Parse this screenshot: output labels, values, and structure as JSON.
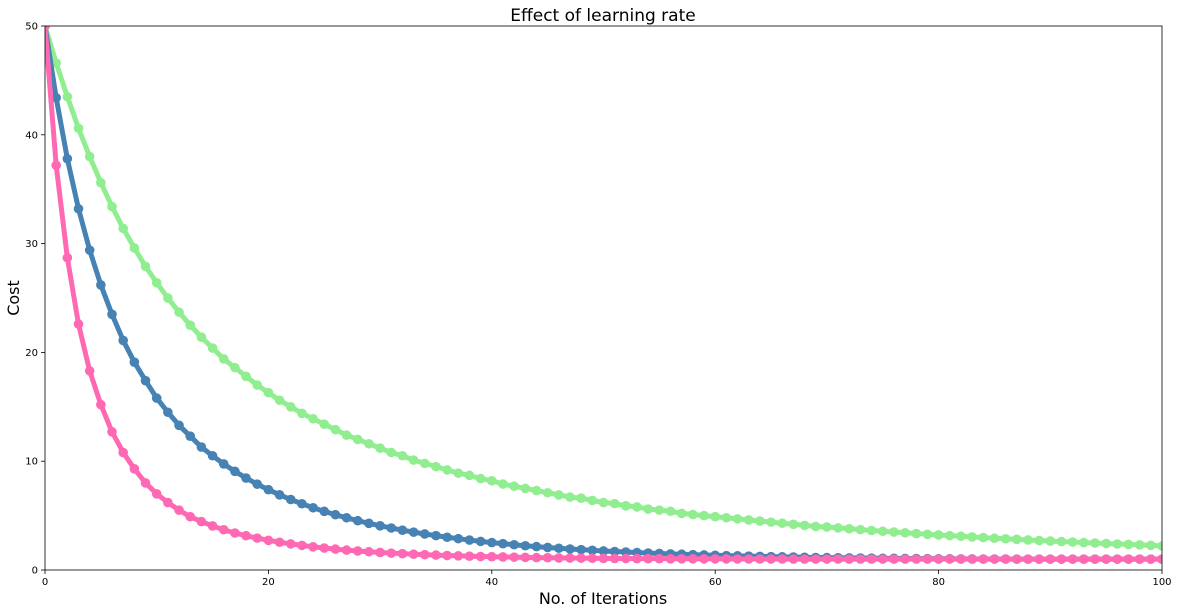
{
  "chart_data": {
    "type": "line",
    "title": "Effect of learning rate",
    "xlabel": "No. of Iterations",
    "ylabel": "Cost",
    "xlim": [
      0,
      100
    ],
    "ylim": [
      0,
      50
    ],
    "xticks": [
      0,
      20,
      40,
      60,
      80,
      100
    ],
    "yticks": [
      0,
      10,
      20,
      30,
      40,
      50
    ],
    "grid": false,
    "x": [
      0,
      1,
      2,
      3,
      4,
      5,
      6,
      7,
      8,
      9,
      10,
      11,
      12,
      13,
      14,
      15,
      16,
      17,
      18,
      19,
      20,
      21,
      22,
      23,
      24,
      25,
      26,
      27,
      28,
      29,
      30,
      31,
      32,
      33,
      34,
      35,
      36,
      37,
      38,
      39,
      40,
      41,
      42,
      43,
      44,
      45,
      46,
      47,
      48,
      49,
      50,
      51,
      52,
      53,
      54,
      55,
      56,
      57,
      58,
      59,
      60,
      61,
      62,
      63,
      64,
      65,
      66,
      67,
      68,
      69,
      70,
      71,
      72,
      73,
      74,
      75,
      76,
      77,
      78,
      79,
      80,
      81,
      82,
      83,
      84,
      85,
      86,
      87,
      88,
      89,
      90,
      91,
      92,
      93,
      94,
      95,
      96,
      97,
      98,
      99,
      100
    ],
    "series": [
      {
        "color": "#90ee90",
        "values": [
          50.0,
          46.6,
          43.5,
          40.6,
          38.0,
          35.6,
          33.4,
          31.4,
          29.6,
          27.9,
          26.4,
          25.0,
          23.7,
          22.5,
          21.4,
          20.4,
          19.4,
          18.6,
          17.8,
          17.0,
          16.3,
          15.6,
          15.0,
          14.4,
          13.9,
          13.4,
          12.9,
          12.4,
          12.0,
          11.6,
          11.2,
          10.8,
          10.5,
          10.1,
          9.8,
          9.5,
          9.2,
          8.9,
          8.7,
          8.4,
          8.2,
          7.9,
          7.7,
          7.5,
          7.3,
          7.1,
          6.9,
          6.7,
          6.6,
          6.4,
          6.2,
          6.1,
          5.9,
          5.8,
          5.6,
          5.5,
          5.4,
          5.2,
          5.1,
          5.0,
          4.9,
          4.8,
          4.7,
          4.6,
          4.5,
          4.4,
          4.3,
          4.2,
          4.1,
          4.0,
          3.95,
          3.87,
          3.79,
          3.71,
          3.63,
          3.56,
          3.49,
          3.42,
          3.35,
          3.28,
          3.22,
          3.16,
          3.1,
          3.04,
          2.98,
          2.92,
          2.87,
          2.82,
          2.76,
          2.71,
          2.66,
          2.61,
          2.57,
          2.52,
          2.48,
          2.43,
          2.39,
          2.35,
          2.31,
          2.27,
          2.2
        ]
      },
      {
        "color": "#4682b4",
        "values": [
          50.0,
          43.4,
          37.8,
          33.2,
          29.4,
          26.2,
          23.5,
          21.1,
          19.1,
          17.4,
          15.8,
          14.5,
          13.3,
          12.3,
          11.3,
          10.5,
          9.75,
          9.07,
          8.45,
          7.89,
          7.38,
          6.91,
          6.48,
          6.09,
          5.72,
          5.39,
          5.08,
          4.8,
          4.53,
          4.29,
          4.06,
          3.86,
          3.66,
          3.48,
          3.31,
          3.16,
          3.01,
          2.88,
          2.75,
          2.63,
          2.52,
          2.42,
          2.32,
          2.23,
          2.15,
          2.07,
          2.0,
          1.93,
          1.87,
          1.81,
          1.75,
          1.7,
          1.65,
          1.6,
          1.56,
          1.52,
          1.48,
          1.45,
          1.41,
          1.38,
          1.35,
          1.32,
          1.3,
          1.27,
          1.25,
          1.23,
          1.21,
          1.19,
          1.17,
          1.15,
          1.14,
          1.12,
          1.11,
          1.1,
          1.09,
          1.08,
          1.07,
          1.06,
          1.05,
          1.04,
          1.03,
          1.03,
          1.02,
          1.02,
          1.01,
          1.01,
          1.01,
          1.0,
          1.0,
          1.0,
          1.0,
          1.0,
          1.0,
          1.0,
          1.0,
          1.0,
          1.0,
          1.0,
          1.0,
          1.0,
          1.0
        ]
      },
      {
        "color": "#ff69b4",
        "values": [
          50.0,
          37.2,
          28.7,
          22.6,
          18.3,
          15.2,
          12.7,
          10.8,
          9.3,
          8.0,
          7.0,
          6.2,
          5.5,
          4.9,
          4.45,
          4.05,
          3.7,
          3.4,
          3.15,
          2.93,
          2.73,
          2.55,
          2.4,
          2.26,
          2.13,
          2.02,
          1.92,
          1.83,
          1.75,
          1.68,
          1.61,
          1.55,
          1.5,
          1.45,
          1.41,
          1.37,
          1.33,
          1.3,
          1.27,
          1.24,
          1.22,
          1.2,
          1.18,
          1.16,
          1.14,
          1.13,
          1.11,
          1.1,
          1.09,
          1.08,
          1.07,
          1.06,
          1.06,
          1.05,
          1.04,
          1.04,
          1.03,
          1.03,
          1.03,
          1.02,
          1.02,
          1.02,
          1.01,
          1.01,
          1.01,
          1.01,
          1.01,
          1.0,
          1.0,
          1.0,
          1.0,
          1.0,
          1.0,
          1.0,
          1.0,
          1.0,
          1.0,
          1.0,
          1.0,
          1.0,
          1.0,
          1.0,
          1.0,
          1.0,
          1.0,
          1.0,
          1.0,
          1.0,
          1.0,
          1.0,
          1.0,
          1.0,
          1.0,
          1.0,
          1.0,
          1.0,
          1.0,
          1.0,
          1.0,
          1.0,
          1.0
        ]
      }
    ]
  }
}
